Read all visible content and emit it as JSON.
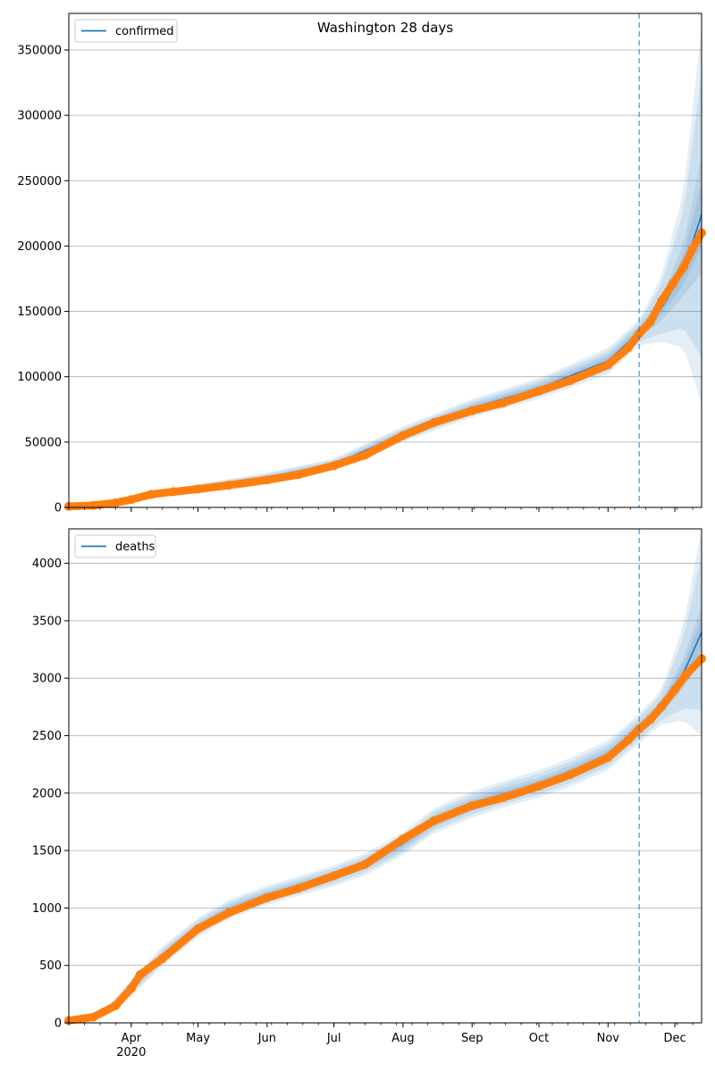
{
  "chart_data": [
    {
      "type": "line",
      "title": "Washington 28 days",
      "xlabel": "",
      "ylabel": "",
      "ylim": [
        0,
        378000
      ],
      "y_ticks": [
        0,
        50000,
        100000,
        150000,
        200000,
        250000,
        300000,
        350000
      ],
      "y_tick_labels": [
        "0",
        "50000",
        "100000",
        "150000",
        "200000",
        "250000",
        "300000",
        "350000"
      ],
      "x_ticks": [
        "2020-04-01",
        "2020-05-01",
        "2020-06-01",
        "2020-07-01",
        "2020-08-01",
        "2020-09-01",
        "2020-10-01",
        "2020-11-01",
        "2020-12-01"
      ],
      "x_tick_labels": [],
      "xlim": [
        "2020-03-04",
        "2020-12-13"
      ],
      "grid": "horizontal",
      "legend_position": "top-left",
      "series": [
        {
          "name": "confirmed",
          "kind": "model-fit",
          "color": "#1f77b4",
          "x": [
            "2020-03-04",
            "2020-04-01",
            "2020-05-01",
            "2020-06-01",
            "2020-07-01",
            "2020-08-01",
            "2020-09-01",
            "2020-10-01",
            "2020-11-01",
            "2020-11-15",
            "2020-11-25",
            "2020-12-05",
            "2020-12-13"
          ],
          "y": [
            800,
            5500,
            15500,
            23000,
            33000,
            56000,
            76000,
            91000,
            112000,
            134000,
            152000,
            182000,
            224000
          ],
          "band_inner_half_width": [
            100,
            500,
            1000,
            1500,
            2000,
            3000,
            3500,
            4000,
            5000,
            5000,
            9000,
            20000,
            45000
          ],
          "band_outer_half_width": [
            300,
            1500,
            2500,
            3500,
            4500,
            6000,
            7000,
            8000,
            10000,
            10000,
            25000,
            60000,
            145000
          ]
        },
        {
          "name": "",
          "kind": "observed",
          "color": "#ff7f0e",
          "x": [
            "2020-03-04",
            "2020-03-15",
            "2020-03-25",
            "2020-04-01",
            "2020-04-10",
            "2020-04-20",
            "2020-05-01",
            "2020-05-15",
            "2020-06-01",
            "2020-06-15",
            "2020-07-01",
            "2020-07-15",
            "2020-08-01",
            "2020-08-15",
            "2020-09-01",
            "2020-09-15",
            "2020-10-01",
            "2020-10-15",
            "2020-11-01",
            "2020-11-10",
            "2020-11-15",
            "2020-11-20",
            "2020-11-25",
            "2020-11-30",
            "2020-12-05",
            "2020-12-09",
            "2020-12-13"
          ],
          "y": [
            800,
            1500,
            3500,
            6000,
            10000,
            12000,
            14000,
            17000,
            21000,
            25000,
            32000,
            40000,
            55000,
            65000,
            74000,
            80000,
            89000,
            97000,
            109000,
            122000,
            133000,
            142000,
            158000,
            171000,
            184000,
            198000,
            210000
          ]
        }
      ],
      "vertical_marker": {
        "x": "2020-11-15",
        "style": "dashed",
        "color": "#1f77b4"
      }
    },
    {
      "type": "line",
      "title": "",
      "xlabel": "",
      "ylabel": "",
      "ylim": [
        0,
        4300
      ],
      "y_ticks": [
        0,
        500,
        1000,
        1500,
        2000,
        2500,
        3000,
        3500,
        4000
      ],
      "y_tick_labels": [
        "0",
        "500",
        "1000",
        "1500",
        "2000",
        "2500",
        "3000",
        "3500",
        "4000"
      ],
      "x_ticks": [
        "2020-04-01",
        "2020-05-01",
        "2020-06-01",
        "2020-07-01",
        "2020-08-01",
        "2020-09-01",
        "2020-10-01",
        "2020-11-01",
        "2020-12-01"
      ],
      "x_tick_labels": [
        "Apr\n2020",
        "May",
        "Jun",
        "Jul",
        "Aug",
        "Sep",
        "Oct",
        "Nov",
        "Dec"
      ],
      "xlim": [
        "2020-03-04",
        "2020-12-13"
      ],
      "grid": "horizontal",
      "legend_position": "top-left",
      "series": [
        {
          "name": "deaths",
          "kind": "model-fit",
          "color": "#1f77b4",
          "x": [
            "2020-03-04",
            "2020-03-20",
            "2020-04-01",
            "2020-04-15",
            "2020-05-01",
            "2020-05-15",
            "2020-06-01",
            "2020-06-15",
            "2020-07-01",
            "2020-07-15",
            "2020-08-01",
            "2020-08-15",
            "2020-09-01",
            "2020-09-15",
            "2020-10-01",
            "2020-10-15",
            "2020-11-01",
            "2020-11-15",
            "2020-11-25",
            "2020-12-05",
            "2020-12-13"
          ],
          "y": [
            20,
            80,
            300,
            580,
            830,
            990,
            1110,
            1190,
            1280,
            1380,
            1560,
            1760,
            1900,
            1990,
            2080,
            2180,
            2330,
            2560,
            2750,
            3050,
            3400
          ],
          "band_inner_half_width": [
            5,
            15,
            30,
            40,
            40,
            40,
            40,
            40,
            40,
            45,
            50,
            55,
            55,
            55,
            55,
            60,
            65,
            60,
            60,
            130,
            240
          ],
          "band_outer_half_width": [
            10,
            30,
            70,
            85,
            85,
            85,
            85,
            85,
            90,
            95,
            100,
            110,
            115,
            115,
            120,
            125,
            130,
            130,
            150,
            420,
            900
          ]
        },
        {
          "name": "",
          "kind": "observed",
          "color": "#ff7f0e",
          "x": [
            "2020-03-04",
            "2020-03-15",
            "2020-03-25",
            "2020-04-01",
            "2020-04-05",
            "2020-04-15",
            "2020-05-01",
            "2020-05-15",
            "2020-06-01",
            "2020-06-15",
            "2020-07-01",
            "2020-07-15",
            "2020-08-01",
            "2020-08-15",
            "2020-09-01",
            "2020-09-15",
            "2020-10-01",
            "2020-10-15",
            "2020-11-01",
            "2020-11-10",
            "2020-11-15",
            "2020-11-20",
            "2020-11-25",
            "2020-12-01",
            "2020-12-06",
            "2020-12-13"
          ],
          "y": [
            20,
            50,
            150,
            300,
            420,
            560,
            820,
            960,
            1090,
            1170,
            1280,
            1380,
            1600,
            1760,
            1890,
            1960,
            2060,
            2160,
            2310,
            2460,
            2560,
            2640,
            2750,
            2900,
            3030,
            3170
          ]
        }
      ],
      "vertical_marker": {
        "x": "2020-11-15",
        "style": "dashed",
        "color": "#1f77b4"
      }
    }
  ]
}
